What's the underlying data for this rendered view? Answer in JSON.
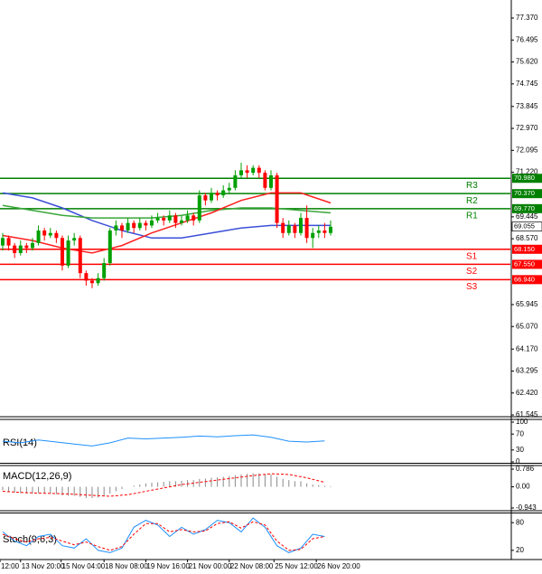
{
  "chart_data": {
    "type": "candlestick",
    "xlim": [
      0.55,
      86.15
    ],
    "ylim": [
      61.51,
      78.09
    ],
    "yticks": [
      {
        "value": 77.37,
        "label": "77.370"
      },
      76.495,
      {
        "value": 75.62,
        "label": "75.620"
      },
      74.745,
      73.845,
      {
        "value": 72.97,
        "label": "72.970"
      },
      72.095,
      {
        "value": 71.22,
        "label": "71.220"
      },
      69.445,
      {
        "value": 68.57,
        "label": "68.570"
      },
      65.945,
      {
        "value": 65.07,
        "label": "65.070"
      },
      {
        "value": 64.17,
        "label": "64.170"
      },
      63.295,
      {
        "value": 62.42,
        "label": "62.420"
      },
      61.545
    ],
    "xticks": [
      {
        "value": 0.55,
        "label": "12:00"
      },
      {
        "value": 4,
        "label": "13 Nov 20:00"
      },
      {
        "value": 10.8,
        "label": "15 Nov 04:00"
      },
      {
        "value": 18,
        "label": "18 Nov 08:00"
      },
      {
        "value": 25,
        "label": "19 Nov 16:00"
      },
      {
        "value": 32,
        "label": "21 Nov 00:00"
      },
      {
        "value": 39,
        "label": "22 Nov 08:00"
      },
      {
        "value": 46.5,
        "label": "25 Nov 12:00"
      },
      {
        "value": 53.6,
        "label": "26 Nov 20:00"
      }
    ],
    "up_color": "#00a000",
    "down_color": "#ff0000",
    "ohlc": [
      [
        68.3,
        68.8,
        68.1,
        68.6
      ],
      [
        68.6,
        68.7,
        68.1,
        68.3
      ],
      [
        68.3,
        68.4,
        67.8,
        68.0
      ],
      [
        68.0,
        68.5,
        67.9,
        68.3
      ],
      [
        68.3,
        68.4,
        68.0,
        68.2
      ],
      [
        68.2,
        68.6,
        68.1,
        68.4
      ],
      [
        68.4,
        69.1,
        68.3,
        68.9
      ],
      [
        68.9,
        69.0,
        68.5,
        68.7
      ],
      [
        68.7,
        69.0,
        68.6,
        68.8
      ],
      [
        68.8,
        68.9,
        68.4,
        68.6
      ],
      [
        68.6,
        68.7,
        67.3,
        67.5
      ],
      [
        67.5,
        68.7,
        67.4,
        68.5
      ],
      [
        68.5,
        68.8,
        68.3,
        68.6
      ],
      [
        68.6,
        68.7,
        67.0,
        67.2
      ],
      [
        67.2,
        67.3,
        66.7,
        66.9
      ],
      [
        66.9,
        67.0,
        66.6,
        66.8
      ],
      [
        66.8,
        67.2,
        66.7,
        67.0
      ],
      [
        67.0,
        67.8,
        66.9,
        67.6
      ],
      [
        67.6,
        69.0,
        67.5,
        68.9
      ],
      [
        68.9,
        69.3,
        68.7,
        69.1
      ],
      [
        69.1,
        69.2,
        68.6,
        68.9
      ],
      [
        68.9,
        69.4,
        68.8,
        69.2
      ],
      [
        69.2,
        69.3,
        68.8,
        69.0
      ],
      [
        69.0,
        69.4,
        68.9,
        69.2
      ],
      [
        69.2,
        69.3,
        68.9,
        69.1
      ],
      [
        69.1,
        69.5,
        69.0,
        69.3
      ],
      [
        69.3,
        69.6,
        69.2,
        69.4
      ],
      [
        69.4,
        69.5,
        69.1,
        69.3
      ],
      [
        69.3,
        69.7,
        69.2,
        69.5
      ],
      [
        69.5,
        69.6,
        69.0,
        69.2
      ],
      [
        69.2,
        69.5,
        69.1,
        69.3
      ],
      [
        69.3,
        69.7,
        69.2,
        69.5
      ],
      [
        69.5,
        69.6,
        69.1,
        69.3
      ],
      [
        69.3,
        70.5,
        69.2,
        70.3
      ],
      [
        70.3,
        70.4,
        69.9,
        70.1
      ],
      [
        70.1,
        70.6,
        70.0,
        70.4
      ],
      [
        70.4,
        70.5,
        70.1,
        70.3
      ],
      [
        70.3,
        70.7,
        70.2,
        70.5
      ],
      [
        70.5,
        70.8,
        70.4,
        70.6
      ],
      [
        70.6,
        71.3,
        70.5,
        71.1
      ],
      [
        71.1,
        71.6,
        71.0,
        71.3
      ],
      [
        71.3,
        71.5,
        71.0,
        71.2
      ],
      [
        71.2,
        71.5,
        71.1,
        71.4
      ],
      [
        71.4,
        71.5,
        71.0,
        71.2
      ],
      [
        71.2,
        71.3,
        70.5,
        70.6
      ],
      [
        70.6,
        71.3,
        70.5,
        71.1
      ],
      [
        71.1,
        71.2,
        69.0,
        69.2
      ],
      [
        69.2,
        69.4,
        68.6,
        68.8
      ],
      [
        68.8,
        69.3,
        68.7,
        69.1
      ],
      [
        69.1,
        69.2,
        68.6,
        68.8
      ],
      [
        68.8,
        69.6,
        68.7,
        69.4
      ],
      [
        69.4,
        69.9,
        68.4,
        68.6
      ],
      [
        68.6,
        69.0,
        68.2,
        68.8
      ],
      [
        68.8,
        69.1,
        68.6,
        68.9
      ],
      [
        68.9,
        69.2,
        68.6,
        68.8
      ],
      [
        68.8,
        69.3,
        68.7,
        69.05
      ]
    ],
    "moving_averages": [
      {
        "color": "#3b4fd8",
        "x": [
          1,
          6,
          11,
          16,
          21,
          26,
          31,
          36,
          41,
          46,
          51,
          56
        ],
        "values": [
          70.4,
          70.2,
          69.8,
          69.3,
          68.9,
          68.6,
          68.6,
          68.8,
          69.0,
          69.1,
          69.1,
          69.1
        ]
      },
      {
        "color": "#3aa63a",
        "x": [
          1,
          6,
          11,
          16,
          21,
          26,
          31,
          36,
          41,
          46,
          51,
          56
        ],
        "values": [
          69.9,
          69.7,
          69.5,
          69.4,
          69.4,
          69.4,
          69.5,
          69.7,
          69.8,
          69.8,
          69.7,
          69.6
        ]
      },
      {
        "color": "#ff2020",
        "x": [
          1,
          6,
          11,
          16,
          21,
          26,
          31,
          36,
          41,
          46,
          51,
          56
        ],
        "values": [
          68.7,
          68.5,
          68.2,
          68.0,
          68.3,
          68.8,
          69.2,
          69.6,
          70.1,
          70.4,
          70.4,
          70.0
        ]
      }
    ],
    "levels": [
      {
        "name": "R3",
        "value": 70.98,
        "label": "70.980",
        "color": "#008000"
      },
      {
        "name": "R2",
        "value": 70.37,
        "label": "70.370",
        "color": "#008000"
      },
      {
        "name": "R1",
        "value": 69.77,
        "label": "69.770",
        "color": "#008000"
      },
      {
        "name": "S1",
        "value": 68.15,
        "label": "68.150",
        "color": "#ff0000"
      },
      {
        "name": "S2",
        "value": 67.55,
        "label": "67.550",
        "color": "#ff0000"
      },
      {
        "name": "S3",
        "value": 66.94,
        "label": "66.940",
        "color": "#ff0000"
      }
    ],
    "last_price": {
      "value": 69.055,
      "label": "69.055"
    },
    "indicators": [
      {
        "name": "RSI(14)",
        "ylim": [
          0,
          100
        ],
        "yticks": [
          100,
          70,
          30,
          0
        ],
        "series": [
          {
            "color": "#1e90ff",
            "dashed": false,
            "x": [
              1,
              4,
              7,
              10,
              13,
              16,
              19,
              22,
              25,
              28,
              31,
              34,
              37,
              40,
              43,
              46,
              49,
              52,
              55
            ],
            "values": [
              52,
              48,
              55,
              50,
              45,
              40,
              48,
              60,
              58,
              60,
              62,
              65,
              63,
              66,
              68,
              62,
              52,
              50,
              53
            ]
          }
        ]
      },
      {
        "name": "MACD(12,26,9)",
        "ylim": [
          -1.023,
          0.947
        ],
        "yticks": [
          0.786,
          {
            "value": 0,
            "label": "0.00"
          },
          -0.943
        ],
        "histogram": {
          "color": "#8a8a8a",
          "values": [
            -0.15,
            -0.2,
            -0.25,
            -0.28,
            -0.3,
            -0.3,
            -0.28,
            -0.28,
            -0.3,
            -0.32,
            -0.38,
            -0.4,
            -0.4,
            -0.45,
            -0.5,
            -0.5,
            -0.48,
            -0.42,
            -0.3,
            -0.2,
            -0.1,
            0,
            0.05,
            0.1,
            0.15,
            0.18,
            0.2,
            0.22,
            0.25,
            0.25,
            0.27,
            0.3,
            0.3,
            0.35,
            0.37,
            0.4,
            0.42,
            0.45,
            0.48,
            0.52,
            0.55,
            0.58,
            0.6,
            0.6,
            0.55,
            0.55,
            0.45,
            0.35,
            0.3,
            0.25,
            0.25,
            0.15,
            0.1,
            0.08,
            0.05,
            0.03
          ]
        },
        "series": [
          {
            "color": "#ff0000",
            "dashed": true,
            "x": [
              1,
              4,
              7,
              10,
              13,
              16,
              19,
              22,
              25,
              28,
              31,
              34,
              37,
              40,
              43,
              46,
              49,
              52,
              55
            ],
            "values": [
              -0.2,
              -0.25,
              -0.28,
              -0.3,
              -0.33,
              -0.38,
              -0.42,
              -0.35,
              -0.2,
              -0.05,
              0.1,
              0.2,
              0.3,
              0.4,
              0.5,
              0.58,
              0.55,
              0.4,
              0.2
            ]
          }
        ]
      },
      {
        "name": "Stoch(9,6,3)",
        "ylim": [
          0,
          100
        ],
        "yticks": [
          80,
          20
        ],
        "series": [
          {
            "color": "#1e90ff",
            "dashed": false,
            "x": [
              1,
              3,
              5,
              7,
              9,
              11,
              13,
              15,
              17,
              19,
              21,
              23,
              25,
              27,
              29,
              31,
              33,
              35,
              37,
              39,
              41,
              43,
              45,
              47,
              49,
              51,
              53,
              55
            ],
            "values": [
              60,
              40,
              30,
              50,
              55,
              30,
              25,
              45,
              20,
              15,
              25,
              70,
              85,
              75,
              50,
              70,
              55,
              65,
              85,
              80,
              60,
              90,
              70,
              30,
              15,
              25,
              55,
              50
            ]
          },
          {
            "color": "#ff0000",
            "dashed": true,
            "x": [
              1,
              3,
              5,
              7,
              9,
              11,
              13,
              15,
              17,
              19,
              21,
              23,
              25,
              27,
              29,
              31,
              33,
              35,
              37,
              39,
              41,
              43,
              45,
              47,
              49,
              51,
              53,
              55
            ],
            "values": [
              55,
              45,
              38,
              45,
              48,
              40,
              32,
              38,
              28,
              20,
              28,
              55,
              78,
              78,
              60,
              65,
              60,
              62,
              78,
              82,
              68,
              82,
              75,
              40,
              20,
              22,
              45,
              50
            ]
          }
        ]
      }
    ]
  }
}
